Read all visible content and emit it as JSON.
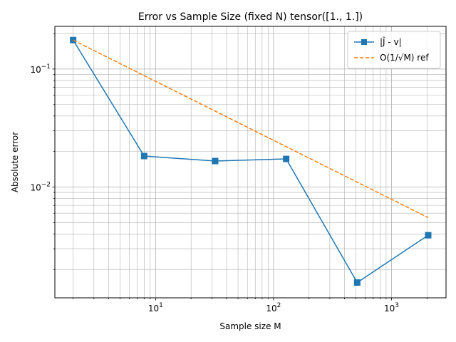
{
  "chart_data": {
    "type": "line",
    "title": "Error vs Sample Size (fixed N) tensor([1., 1.])",
    "xlabel": "Sample size M",
    "ylabel": "Absolute error",
    "xscale": "log",
    "yscale": "log",
    "xlim": [
      1.4,
      2900
    ],
    "ylim": [
      0.00115,
      0.23
    ],
    "grid": "both-major-and-minor",
    "legend_position": "top-right",
    "x_ticks": [
      {
        "base": "10",
        "exp": "1",
        "value": 10
      },
      {
        "base": "10",
        "exp": "2",
        "value": 100
      },
      {
        "base": "10",
        "exp": "3",
        "value": 1000
      }
    ],
    "y_ticks": [
      {
        "base": "10",
        "exp": "−2",
        "value": 0.01
      },
      {
        "base": "10",
        "exp": "−1",
        "value": 0.1
      }
    ],
    "series": [
      {
        "name": "|Ĵ - v|",
        "color": "#1f77b4",
        "linestyle": "solid",
        "marker": "square",
        "x": [
          2,
          8,
          32,
          128,
          512,
          2048
        ],
        "y": [
          0.176,
          0.0183,
          0.0166,
          0.0173,
          0.00155,
          0.0039
        ]
      },
      {
        "name": "O(1/√M) ref",
        "color": "#ff7f0e",
        "linestyle": "dashed",
        "marker": "none",
        "x": [
          2,
          8,
          32,
          128,
          512,
          2048
        ],
        "y": [
          0.176,
          0.088,
          0.044,
          0.022,
          0.011,
          0.0055
        ]
      }
    ]
  }
}
